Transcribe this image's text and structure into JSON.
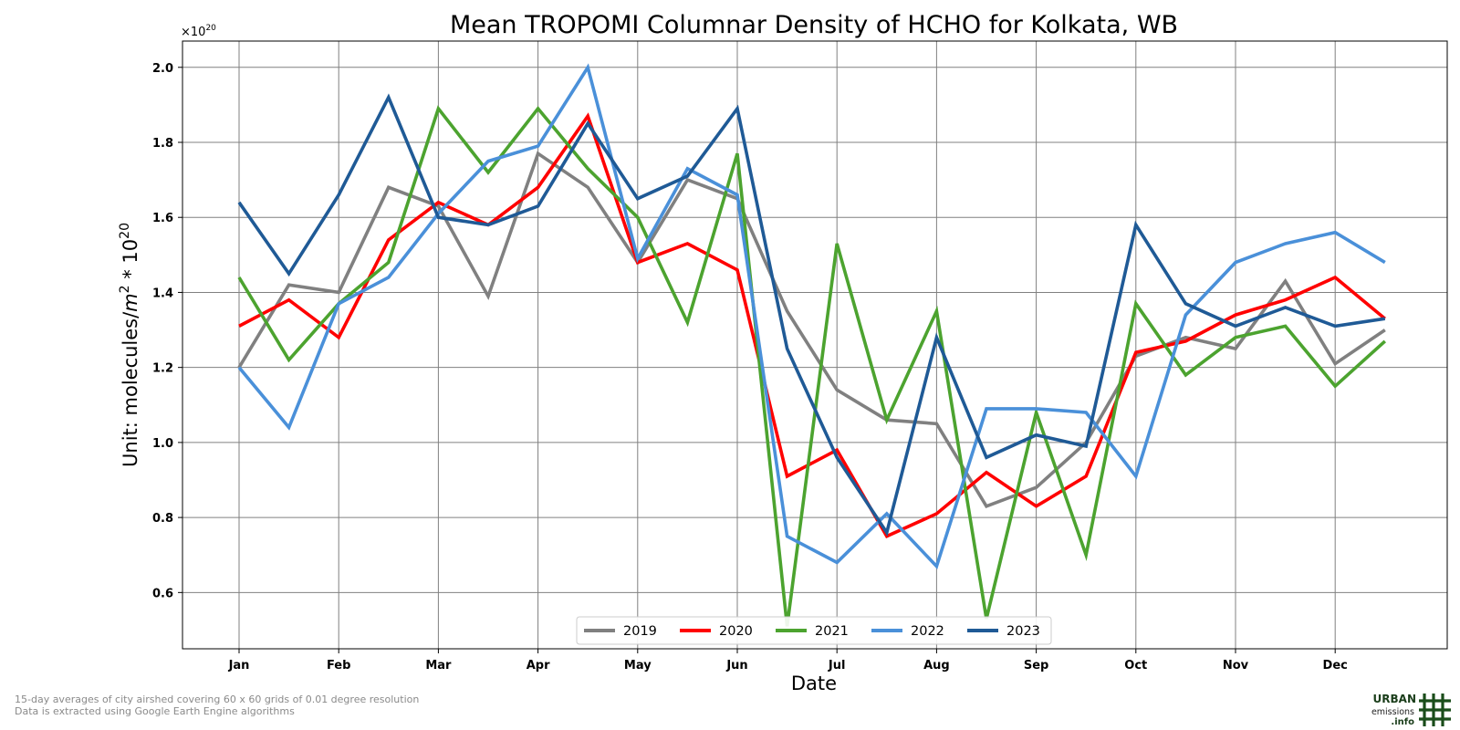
{
  "chart_data": {
    "type": "line",
    "title": "Mean TROPOMI Columnar Density of HCHO for Kolkata, WB",
    "xlabel": "Date",
    "ylabel_text": "Unit: molecules/",
    "ylabel_unit": "m",
    "ylabel_exp": "2",
    "ylabel_mult": " * 10",
    "ylabel_mult_exp": "20",
    "offset_base": "×10",
    "offset_exp": "20",
    "x_tick_labels": [
      "Jan",
      "Feb",
      "Mar",
      "Apr",
      "May",
      "Jun",
      "Jul",
      "Aug",
      "Sep",
      "Oct",
      "Nov",
      "Dec"
    ],
    "y_ticks": [
      "0.6",
      "0.8",
      "1.0",
      "1.2",
      "1.4",
      "1.6",
      "1.8",
      "2.0"
    ],
    "ylim": [
      0.45,
      2.07
    ],
    "grid": true,
    "legend_position": "bottom-center",
    "x_points": 24,
    "series": [
      {
        "name": "2019",
        "color": "#808080",
        "values": [
          1.2,
          1.42,
          1.4,
          1.68,
          1.63,
          1.39,
          1.77,
          1.68,
          1.48,
          1.7,
          1.65,
          1.35,
          1.14,
          1.06,
          1.05,
          0.83,
          0.88,
          1.0,
          1.23,
          1.28,
          1.25,
          1.43,
          1.21,
          1.3
        ]
      },
      {
        "name": "2020",
        "color": "#ff0000",
        "values": [
          1.31,
          1.38,
          1.28,
          1.54,
          1.64,
          1.58,
          1.68,
          1.87,
          1.48,
          1.53,
          1.46,
          0.91,
          0.98,
          0.75,
          0.81,
          0.92,
          0.83,
          0.91,
          1.24,
          1.27,
          1.34,
          1.38,
          1.44,
          1.33
        ]
      },
      {
        "name": "2021",
        "color": "#4ca32f",
        "values": [
          1.44,
          1.22,
          1.37,
          1.48,
          1.89,
          1.72,
          1.89,
          1.73,
          1.6,
          1.32,
          1.77,
          0.51,
          1.53,
          1.06,
          1.35,
          0.53,
          1.08,
          0.7,
          1.37,
          1.18,
          1.28,
          1.31,
          1.15,
          1.27
        ]
      },
      {
        "name": "2022",
        "color": "#4a90d9",
        "values": [
          1.2,
          1.04,
          1.37,
          1.44,
          1.61,
          1.75,
          1.79,
          2.0,
          1.49,
          1.73,
          1.66,
          0.75,
          0.68,
          0.81,
          0.67,
          1.09,
          1.09,
          1.08,
          0.91,
          1.34,
          1.48,
          1.53,
          1.56,
          1.48
        ]
      },
      {
        "name": "2023",
        "color": "#1f5a96",
        "values": [
          1.64,
          1.45,
          1.66,
          1.92,
          1.6,
          1.58,
          1.63,
          1.85,
          1.65,
          1.71,
          1.89,
          1.25,
          0.96,
          0.76,
          1.28,
          0.96,
          1.02,
          0.99,
          1.58,
          1.37,
          1.31,
          1.36,
          1.31,
          1.33
        ]
      }
    ]
  },
  "footnotes": [
    "15-day averages of city airshed covering 60 x 60 grids of 0.01 degree resolution",
    "Data is extracted using Google Earth Engine algorithms"
  ],
  "logo": {
    "line1": "URBAN",
    "line2": "emissions",
    "line3": ".info",
    "color": "#1a3d1a"
  }
}
